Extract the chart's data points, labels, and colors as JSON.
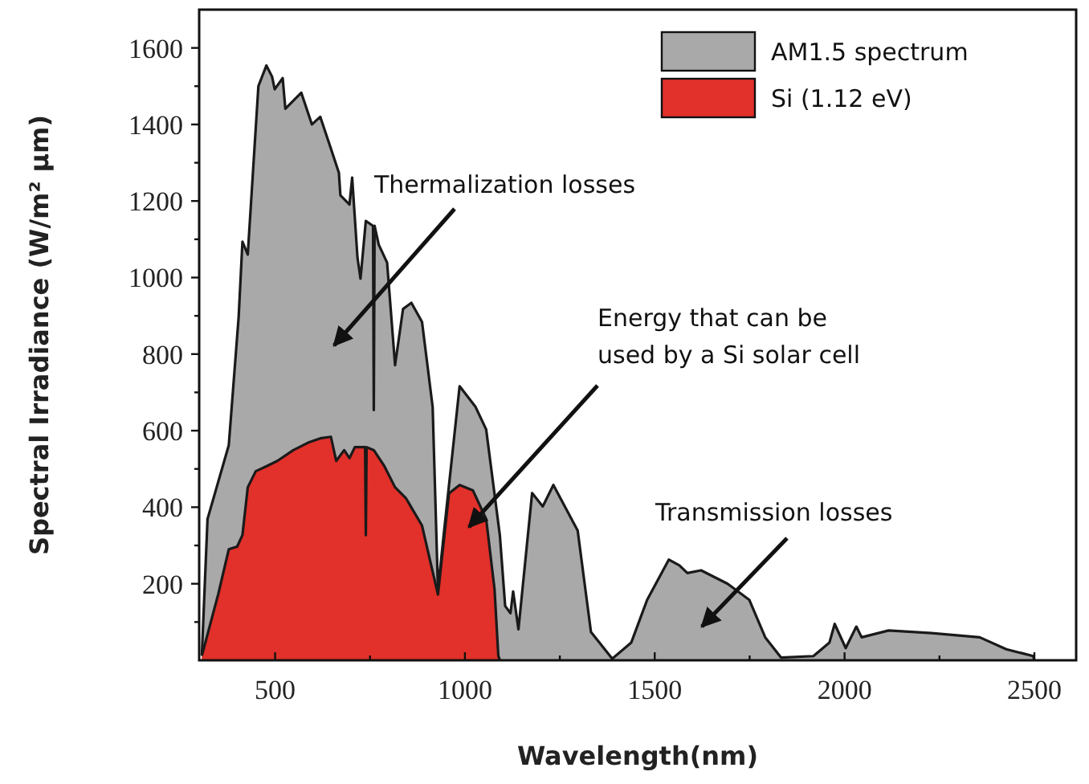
{
  "chart_data": {
    "type": "area",
    "xlabel": "Wavelength(nm)",
    "ylabel": "Spectral Irradiance (W/m² µm)",
    "xlim": [
      300,
      2610
    ],
    "ylim": [
      0,
      1700
    ],
    "xticks": [
      500,
      {
        "value": 750,
        "label": null
      },
      1000,
      {
        "value": 1250,
        "label": null
      },
      1500,
      {
        "value": 1750,
        "label": null
      },
      2000,
      {
        "value": 2250,
        "label": null
      },
      2500
    ],
    "yticks": [
      {
        "value": 100,
        "label": null
      },
      200,
      {
        "value": 300,
        "label": null
      },
      400,
      {
        "value": 500,
        "label": null
      },
      600,
      {
        "value": 700,
        "label": null
      },
      800,
      {
        "value": 900,
        "label": null
      },
      1000,
      {
        "value": 1100,
        "label": null
      },
      1200,
      {
        "value": 1300,
        "label": null
      },
      1400,
      {
        "value": 1500,
        "label": null
      },
      1600
    ],
    "legend": "top right",
    "series": [
      {
        "name": "AM1.5 spectrum",
        "color": "#a9a9a9",
        "x": [
          307,
          322,
          378,
          404,
          414,
          428,
          456,
          477,
          492,
          499,
          520,
          527,
          569,
          597,
          619,
          647,
          668,
          672,
          696,
          703,
          717,
          725,
          739,
          758,
          760,
          762,
          773,
          795,
          816,
          837,
          859,
          887,
          915,
          929,
          944,
          986,
          1028,
          1056,
          1092,
          1106,
          1120,
          1127,
          1141,
          1177,
          1205,
          1233,
          1297,
          1332,
          1388,
          1438,
          1480,
          1537,
          1565,
          1586,
          1622,
          1692,
          1749,
          1791,
          1833,
          1918,
          1960,
          1974,
          2003,
          2031,
          2045,
          2116,
          2229,
          2356,
          2426,
          2497,
          2500
        ],
        "values": [
          12,
          369,
          562,
          897,
          1094,
          1060,
          1500,
          1554,
          1525,
          1492,
          1521,
          1441,
          1483,
          1400,
          1420,
          1337,
          1274,
          1215,
          1191,
          1261,
          1052,
          997,
          1148,
          1135,
          654,
          1135,
          1086,
          1039,
          771,
          918,
          934,
          884,
          662,
          184,
          327,
          716,
          662,
          603,
          327,
          142,
          123,
          180,
          81,
          437,
          402,
          458,
          339,
          74,
          4,
          46,
          158,
          263,
          248,
          228,
          235,
          200,
          158,
          60,
          7,
          11,
          46,
          95,
          32,
          88,
          60,
          78,
          71,
          60,
          29,
          11,
          0
        ]
      },
      {
        "name": "Si (1.12 eV)",
        "color": "#e2302a",
        "x": [
          307,
          350,
          378,
          400,
          414,
          428,
          449,
          477,
          506,
          548,
          590,
          619,
          647,
          661,
          682,
          696,
          710,
          737,
          739,
          741,
          760,
          788,
          816,
          845,
          887,
          929,
          958,
          986,
          1021,
          1056,
          1078,
          1088,
          1092
        ],
        "values": [
          12,
          172,
          290,
          297,
          327,
          452,
          494,
          507,
          521,
          549,
          570,
          580,
          584,
          521,
          549,
          528,
          557,
          557,
          327,
          557,
          549,
          507,
          452,
          423,
          352,
          172,
          436,
          458,
          444,
          369,
          186,
          12,
          0
        ]
      }
    ],
    "annotations": [
      "Thermalization losses",
      "Energy that can be\nused by a Si solar cell",
      "Transmission losses"
    ]
  }
}
